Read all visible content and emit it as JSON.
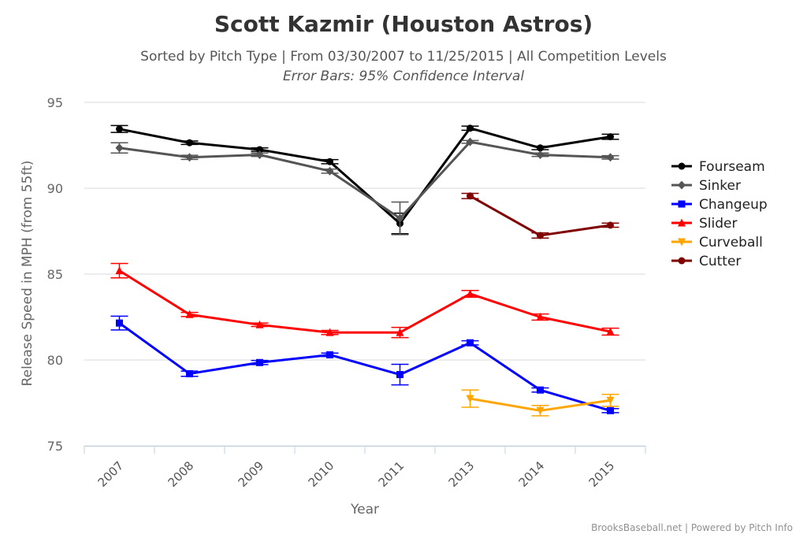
{
  "chart_data": {
    "type": "line",
    "title": "Scott Kazmir (Houston Astros)",
    "subtitle": "Sorted by Pitch Type | From 03/30/2007 to 11/25/2015 | All Competition Levels",
    "subtitle2": "Error Bars: 95% Confidence Interval",
    "xlabel": "Year",
    "ylabel": "Release Speed in MPH (from 55ft)",
    "credits": "BrooksBaseball.net | Powered by Pitch Info",
    "categories": [
      "2007",
      "2008",
      "2009",
      "2010",
      "2011",
      "2013",
      "2014",
      "2015"
    ],
    "ylim": [
      75,
      95
    ],
    "yticks": [
      75,
      80,
      85,
      90,
      95
    ],
    "grid": true,
    "legend_position": "right",
    "series": [
      {
        "name": "Fourseam",
        "color": "#000000",
        "marker": "circle",
        "values": [
          93.45,
          92.65,
          92.25,
          91.55,
          87.95,
          93.5,
          92.35,
          93.0
        ],
        "errors": [
          0.2,
          0.1,
          0.1,
          0.12,
          0.6,
          0.12,
          0.1,
          0.15
        ]
      },
      {
        "name": "Sinker",
        "color": "#555555",
        "marker": "diamond",
        "values": [
          92.35,
          91.8,
          91.95,
          91.0,
          88.25,
          92.7,
          91.95,
          91.8
        ],
        "errors": [
          0.3,
          0.12,
          0.1,
          0.12,
          0.95,
          0.08,
          0.1,
          0.1
        ]
      },
      {
        "name": "Changeup",
        "color": "#0000ff",
        "marker": "square",
        "values": [
          82.15,
          79.2,
          79.85,
          80.3,
          79.15,
          81.0,
          78.25,
          77.05
        ],
        "errors": [
          0.4,
          0.15,
          0.12,
          0.1,
          0.6,
          0.12,
          0.12,
          0.12
        ]
      },
      {
        "name": "Slider",
        "color": "#ff0000",
        "marker": "triangle",
        "values": [
          85.2,
          82.65,
          82.05,
          81.6,
          81.6,
          83.85,
          82.5,
          81.65
        ],
        "errors": [
          0.42,
          0.12,
          0.1,
          0.12,
          0.3,
          0.2,
          0.18,
          0.2
        ]
      },
      {
        "name": "Curveball",
        "color": "#ffa500",
        "marker": "triangle-down",
        "values": [
          null,
          null,
          null,
          null,
          null,
          77.75,
          77.05,
          77.65
        ],
        "errors": [
          null,
          null,
          null,
          null,
          null,
          0.5,
          0.3,
          0.35
        ]
      },
      {
        "name": "Cutter",
        "color": "#800000",
        "marker": "circle",
        "values": [
          null,
          null,
          null,
          null,
          null,
          89.55,
          87.25,
          87.85
        ],
        "errors": [
          null,
          null,
          null,
          null,
          null,
          0.15,
          0.15,
          0.12
        ]
      }
    ]
  }
}
